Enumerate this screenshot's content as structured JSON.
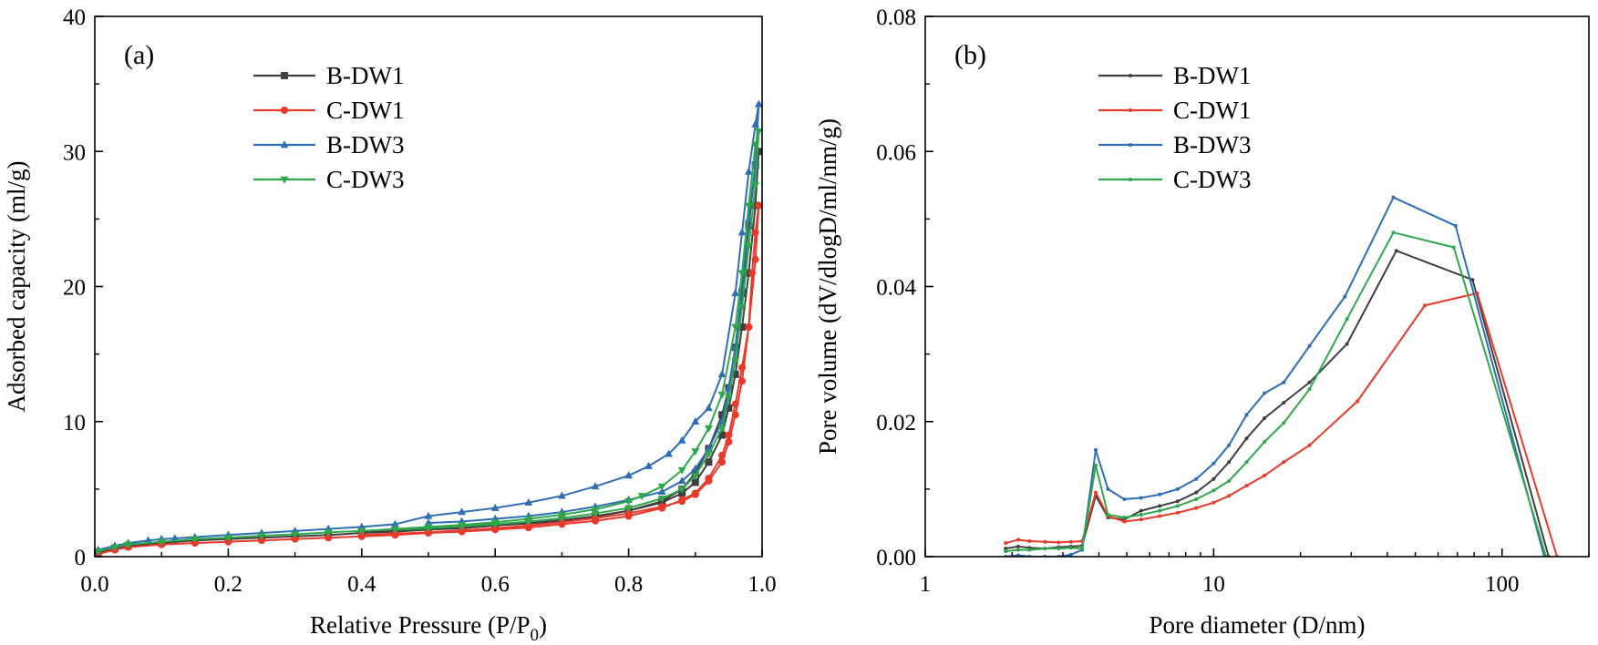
{
  "chart_data": [
    {
      "panel_label": "(a)",
      "type": "line",
      "xlabel": "Relative Pressure (P/P",
      "xlabel_sub": "0",
      "xlabel_end": ")",
      "ylabel": "Adsorbed capacity (ml/g)",
      "xlim": [
        0.0,
        1.0
      ],
      "ylim": [
        0,
        40
      ],
      "xticks": [
        0.0,
        0.2,
        0.4,
        0.6,
        0.8,
        1.0
      ],
      "xtick_labels": [
        "0.0",
        "0.2",
        "0.4",
        "0.6",
        "0.8",
        "1.0"
      ],
      "yticks": [
        0,
        10,
        20,
        30,
        40
      ],
      "ytick_labels": [
        "0",
        "10",
        "20",
        "30",
        "40"
      ],
      "legend_position": "top-center",
      "grid": false,
      "series": [
        {
          "name": "B-DW1",
          "color": "#404040",
          "marker": "square",
          "x": [
            0.005,
            0.03,
            0.05,
            0.1,
            0.15,
            0.2,
            0.25,
            0.3,
            0.35,
            0.4,
            0.45,
            0.5,
            0.55,
            0.6,
            0.65,
            0.7,
            0.75,
            0.8,
            0.85,
            0.88,
            0.9,
            0.92,
            0.94,
            0.95,
            0.96,
            0.97,
            0.98,
            0.99,
            0.995,
            0.99,
            0.98,
            0.97,
            0.96,
            0.95,
            0.94,
            0.92,
            0.9,
            0.88,
            0.85,
            0.8,
            0.75,
            0.7,
            0.65,
            0.6,
            0.55,
            0.5,
            0.45,
            0.4
          ],
          "y": [
            0.3,
            0.6,
            0.8,
            1.0,
            1.2,
            1.3,
            1.4,
            1.5,
            1.6,
            1.75,
            1.85,
            2.0,
            2.1,
            2.3,
            2.45,
            2.65,
            2.95,
            3.4,
            4.1,
            5.0,
            6.2,
            8.0,
            10.5,
            12.5,
            15.5,
            19.5,
            24.5,
            29.0,
            30.0,
            26.0,
            21.0,
            17.0,
            13.5,
            11.0,
            9.0,
            7.0,
            5.5,
            4.7,
            4.0,
            3.4,
            3.0,
            2.7,
            2.5,
            2.3,
            2.15,
            2.0,
            1.9,
            1.8
          ]
        },
        {
          "name": "C-DW1",
          "color": "#e8392b",
          "marker": "circle",
          "x": [
            0.005,
            0.03,
            0.05,
            0.1,
            0.15,
            0.2,
            0.25,
            0.3,
            0.35,
            0.4,
            0.45,
            0.5,
            0.55,
            0.6,
            0.65,
            0.7,
            0.75,
            0.8,
            0.85,
            0.88,
            0.9,
            0.92,
            0.94,
            0.95,
            0.96,
            0.97,
            0.98,
            0.985,
            0.99,
            0.995,
            0.99,
            0.98,
            0.97,
            0.96,
            0.95,
            0.94,
            0.92,
            0.9,
            0.88,
            0.85,
            0.8,
            0.75,
            0.7,
            0.65,
            0.6,
            0.55,
            0.5,
            0.45,
            0.4
          ],
          "y": [
            0.2,
            0.5,
            0.7,
            0.9,
            1.0,
            1.1,
            1.2,
            1.3,
            1.4,
            1.5,
            1.6,
            1.75,
            1.85,
            2.0,
            2.15,
            2.4,
            2.65,
            3.0,
            3.6,
            4.2,
            4.7,
            5.8,
            7.5,
            9.0,
            11.3,
            14.0,
            17.0,
            21.0,
            24.0,
            26.0,
            22.0,
            17.0,
            13.0,
            10.5,
            8.5,
            7.0,
            5.6,
            4.6,
            4.1,
            3.7,
            3.2,
            2.85,
            2.55,
            2.3,
            2.1,
            1.95,
            1.8,
            1.7,
            1.6
          ]
        },
        {
          "name": "B-DW3",
          "color": "#2f6db5",
          "marker": "triangle-up",
          "x": [
            0.005,
            0.03,
            0.05,
            0.08,
            0.1,
            0.12,
            0.15,
            0.2,
            0.25,
            0.3,
            0.35,
            0.4,
            0.45,
            0.5,
            0.55,
            0.6,
            0.65,
            0.7,
            0.75,
            0.8,
            0.83,
            0.86,
            0.88,
            0.9,
            0.92,
            0.94,
            0.96,
            0.97,
            0.98,
            0.99,
            0.995,
            0.99,
            0.98,
            0.97,
            0.96,
            0.95,
            0.94,
            0.92,
            0.9,
            0.88,
            0.85,
            0.8,
            0.75,
            0.7,
            0.65,
            0.6,
            0.55,
            0.5
          ],
          "y": [
            0.5,
            0.8,
            1.0,
            1.2,
            1.3,
            1.35,
            1.45,
            1.6,
            1.75,
            1.9,
            2.05,
            2.2,
            2.4,
            3.0,
            3.3,
            3.6,
            4.0,
            4.5,
            5.2,
            6.0,
            6.7,
            7.6,
            8.6,
            10.0,
            11.0,
            13.5,
            19.5,
            24.0,
            28.5,
            32.0,
            33.5,
            29.0,
            25.0,
            20.0,
            15.5,
            12.5,
            10.0,
            8.0,
            6.5,
            5.6,
            4.8,
            4.2,
            3.7,
            3.3,
            3.0,
            2.8,
            2.6,
            2.5
          ]
        },
        {
          "name": "C-DW3",
          "color": "#2ea84a",
          "marker": "triangle-down",
          "x": [
            0.005,
            0.03,
            0.05,
            0.1,
            0.15,
            0.2,
            0.25,
            0.3,
            0.35,
            0.4,
            0.45,
            0.5,
            0.55,
            0.6,
            0.65,
            0.7,
            0.75,
            0.8,
            0.82,
            0.85,
            0.88,
            0.9,
            0.92,
            0.94,
            0.96,
            0.97,
            0.98,
            0.99,
            0.995,
            0.99,
            0.98,
            0.97,
            0.96,
            0.95,
            0.94,
            0.92,
            0.9,
            0.88,
            0.85,
            0.8,
            0.75,
            0.7,
            0.65,
            0.6,
            0.55,
            0.5,
            0.45
          ],
          "y": [
            0.4,
            0.7,
            0.9,
            1.1,
            1.3,
            1.4,
            1.55,
            1.65,
            1.8,
            1.9,
            2.05,
            2.2,
            2.35,
            2.55,
            2.8,
            3.1,
            3.5,
            4.1,
            4.5,
            5.2,
            6.4,
            7.8,
            9.5,
            12.0,
            17.0,
            21.0,
            26.0,
            30.5,
            31.5,
            27.5,
            23.0,
            18.5,
            14.5,
            11.8,
            9.5,
            7.6,
            6.0,
            5.0,
            4.3,
            3.6,
            3.2,
            2.85,
            2.6,
            2.4,
            2.25,
            2.1,
            2.0
          ]
        }
      ]
    },
    {
      "panel_label": "(b)",
      "type": "line",
      "xlabel": "Pore diameter (D/nm)",
      "ylabel": "Pore volume (dV/dlogD/ml/nm/g)",
      "xscale": "log",
      "xlim": [
        1,
        200
      ],
      "ylim": [
        0,
        0.08
      ],
      "xticks": [
        1,
        10,
        100
      ],
      "xtick_labels": [
        "1",
        "10",
        "100"
      ],
      "yticks": [
        0,
        0.02,
        0.04,
        0.06,
        0.08
      ],
      "ytick_labels": [
        "0.00",
        "0.02",
        "0.04",
        "0.06",
        "0.08"
      ],
      "legend_position": "top-center",
      "grid": false,
      "series": [
        {
          "name": "B-DW1",
          "color": "#404040",
          "x": [
            1.9,
            2.1,
            2.3,
            2.6,
            2.9,
            3.2,
            3.5,
            3.9,
            4.3,
            4.9,
            5.6,
            6.5,
            7.5,
            8.7,
            10,
            11.3,
            13,
            15,
            17.5,
            21.5,
            29,
            43,
            79,
            145
          ],
          "y": [
            0.0012,
            0.0015,
            0.0013,
            0.0012,
            0.0014,
            0.0015,
            0.0016,
            0.009,
            0.0058,
            0.0055,
            0.0068,
            0.0075,
            0.0082,
            0.0095,
            0.0115,
            0.014,
            0.0175,
            0.0205,
            0.0228,
            0.0258,
            0.0315,
            0.0453,
            0.041,
            0.0
          ]
        },
        {
          "name": "C-DW1",
          "color": "#e8392b",
          "x": [
            1.9,
            2.1,
            2.3,
            2.6,
            2.9,
            3.2,
            3.5,
            3.9,
            4.3,
            4.9,
            5.6,
            6.5,
            7.5,
            8.7,
            10,
            11.3,
            13,
            15,
            17.5,
            21.5,
            31.5,
            54,
            82,
            155
          ],
          "y": [
            0.002,
            0.0025,
            0.0023,
            0.0022,
            0.0021,
            0.0022,
            0.0023,
            0.0095,
            0.006,
            0.0052,
            0.0055,
            0.006,
            0.0065,
            0.0072,
            0.008,
            0.009,
            0.0105,
            0.012,
            0.014,
            0.0165,
            0.023,
            0.0372,
            0.039,
            0.0
          ]
        },
        {
          "name": "B-DW3",
          "color": "#2f6db5",
          "x": [
            1.9,
            2.1,
            2.3,
            2.6,
            2.9,
            3.2,
            3.5,
            3.9,
            4.3,
            4.9,
            5.6,
            6.5,
            7.5,
            8.7,
            10,
            11.3,
            13,
            15,
            17.5,
            21.5,
            28.5,
            42,
            69,
            140
          ],
          "y": [
            0.0,
            0.0002,
            0.0,
            0.0,
            0.0,
            0.0003,
            0.001,
            0.0158,
            0.01,
            0.0085,
            0.0087,
            0.0092,
            0.01,
            0.0115,
            0.0138,
            0.0165,
            0.021,
            0.0242,
            0.0258,
            0.0312,
            0.0385,
            0.0532,
            0.049,
            0.0
          ]
        },
        {
          "name": "C-DW3",
          "color": "#2ea84a",
          "x": [
            1.9,
            2.1,
            2.3,
            2.6,
            2.9,
            3.2,
            3.5,
            3.9,
            4.3,
            4.9,
            5.6,
            6.5,
            7.5,
            8.7,
            10,
            11.3,
            13,
            15,
            17.5,
            21.5,
            29,
            42,
            68,
            142
          ],
          "y": [
            0.0008,
            0.001,
            0.001,
            0.0012,
            0.0012,
            0.0013,
            0.0012,
            0.0135,
            0.0062,
            0.0058,
            0.0062,
            0.0068,
            0.0075,
            0.0085,
            0.0098,
            0.0112,
            0.014,
            0.017,
            0.0198,
            0.0248,
            0.0352,
            0.048,
            0.0458,
            0.0
          ]
        }
      ]
    }
  ]
}
